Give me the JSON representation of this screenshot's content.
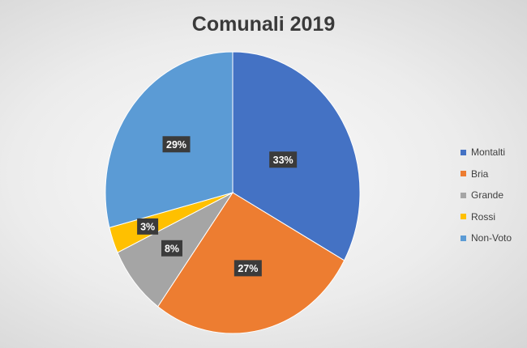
{
  "chart_data": {
    "type": "pie",
    "title": "Comunali 2019",
    "categories": [
      "Montalti",
      "Bria",
      "Grande",
      "Rossi",
      "Non-Voto"
    ],
    "values": [
      33,
      27,
      8,
      3,
      29
    ],
    "data_labels": [
      "33%",
      "27%",
      "8%",
      "3%",
      "29%"
    ],
    "colors": [
      "#4472C4",
      "#ED7D31",
      "#A5A5A5",
      "#FFC000",
      "#5B9BD5"
    ],
    "legend_position": "right",
    "start_angle": "12 o'clock",
    "direction": "clockwise"
  }
}
